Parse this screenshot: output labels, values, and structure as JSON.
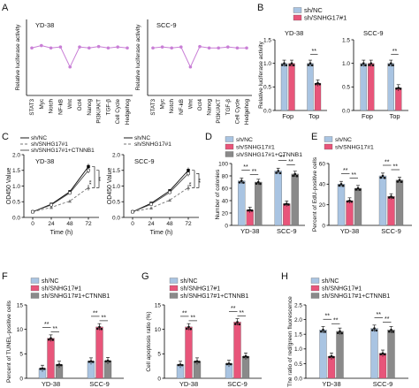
{
  "colors": {
    "nc": "#a9c4e2",
    "sh": "#e8557a",
    "rescue": "#8a8a8a",
    "line": "#c97fd6",
    "black": "#000000",
    "dashed": "#777777"
  },
  "chart_data": [
    {
      "id": "A1",
      "panel": "A",
      "type": "line",
      "title": "YD-38",
      "ylabel": "Relative luciferase activity",
      "categories": [
        "STAT3",
        "Myc",
        "Notch",
        "NF-kB",
        "Wnt",
        "Oct4",
        "Nanog",
        "PI3K/AKT",
        "TGF-β",
        "Cell Cycle",
        "Hedgehog"
      ],
      "values": [
        1.0,
        1.05,
        1.0,
        1.02,
        0.6,
        1.02,
        1.0,
        1.03,
        1.0,
        1.02,
        1.0
      ],
      "ylim": [
        0,
        1.6
      ]
    },
    {
      "id": "A2",
      "panel": "",
      "type": "line",
      "title": "SCC-9",
      "ylabel": "Relative luciferase activity",
      "categories": [
        "STAT3",
        "Myc",
        "Notch",
        "NF-kB",
        "Wnt",
        "Oct4",
        "Nanog",
        "PI3K/AKT",
        "TGF-β",
        "Cell Cycle",
        "Hedgehog"
      ],
      "values": [
        1.0,
        1.02,
        1.0,
        1.02,
        0.6,
        1.03,
        1.0,
        1.0,
        1.02,
        1.0,
        1.0
      ],
      "ylim": [
        0,
        1.6
      ]
    },
    {
      "id": "B1",
      "panel": "B",
      "type": "bar",
      "title": "YD-38",
      "ylabel": "Relative luciferase activity",
      "categories": [
        "Fop",
        "Top"
      ],
      "series": [
        {
          "name": "sh/NC",
          "values": [
            1.0,
            1.0
          ]
        },
        {
          "name": "sh/SNHG17#1",
          "values": [
            1.0,
            0.58
          ]
        }
      ],
      "ylim": [
        0,
        1.5
      ],
      "yticks": [
        "0.0",
        "0.5",
        "1.0",
        "1.5"
      ],
      "sig": [
        "**"
      ]
    },
    {
      "id": "B2",
      "panel": "",
      "type": "bar",
      "title": "SCC-9",
      "ylabel": "",
      "categories": [
        "Fop",
        "Top"
      ],
      "series": [
        {
          "name": "sh/NC",
          "values": [
            1.0,
            1.0
          ]
        },
        {
          "name": "sh/SNHG17#1",
          "values": [
            1.0,
            0.48
          ]
        }
      ],
      "ylim": [
        0,
        1.5
      ],
      "yticks": [
        "0.0",
        "0.5",
        "1.0",
        "1.5"
      ],
      "sig": [
        "**"
      ]
    },
    {
      "id": "C1",
      "panel": "C",
      "type": "line",
      "title": "YD-38",
      "ylabel": "OD450 Value",
      "xlabel": "Time (h)",
      "x": [
        "0",
        "24",
        "48",
        "72"
      ],
      "series": [
        {
          "name": "sh/NC",
          "values": [
            0.18,
            0.42,
            0.82,
            1.62
          ]
        },
        {
          "name": "sh/SNHG17#1",
          "values": [
            0.18,
            0.32,
            0.52,
            0.95
          ]
        },
        {
          "name": "sh/SNHG17#1+CTNNB1",
          "values": [
            0.18,
            0.4,
            0.78,
            1.5
          ]
        }
      ],
      "ylim": [
        0,
        2.0
      ],
      "yticks": [
        "0.0",
        "0.5",
        "1.0",
        "1.5",
        "2.0"
      ],
      "sig": [
        "**",
        "**"
      ]
    },
    {
      "id": "C2",
      "panel": "",
      "type": "line",
      "title": "SCC-9",
      "ylabel": "OD450 Value",
      "xlabel": "Time (h)",
      "x": [
        "0",
        "24",
        "48",
        "72"
      ],
      "series": [
        {
          "name": "sh/NC",
          "values": [
            0.18,
            0.45,
            0.85,
            1.5
          ]
        },
        {
          "name": "sh/SNHG17#1",
          "values": [
            0.18,
            0.3,
            0.55,
            0.95
          ]
        },
        {
          "name": "sh/SNHG17#1+CTNNB1",
          "values": [
            0.18,
            0.42,
            0.8,
            1.4
          ]
        }
      ],
      "ylim": [
        0,
        2.0
      ],
      "yticks": [
        "0.0",
        "0.5",
        "1.0",
        "1.5",
        "2.0"
      ],
      "sig": [
        "**",
        "**"
      ]
    },
    {
      "id": "D",
      "panel": "D",
      "type": "bar",
      "title": "",
      "ylabel": "Number of colonies",
      "categories": [
        "YD-38",
        "SCC-9"
      ],
      "series": [
        {
          "name": "sh/NC",
          "values": [
            72,
            88
          ]
        },
        {
          "name": "sh/SNHG17#1",
          "values": [
            25,
            35
          ]
        },
        {
          "name": "sh/SNHG17#1+CTNNB1",
          "values": [
            70,
            83
          ]
        }
      ],
      "ylim": [
        0,
        100
      ],
      "yticks": [
        "0",
        "20",
        "40",
        "60",
        "80",
        "100"
      ],
      "sig": [
        "**",
        "**",
        "**",
        "**"
      ]
    },
    {
      "id": "E",
      "panel": "E",
      "type": "bar",
      "title": "",
      "ylabel": "Percent of EdU-positive cells",
      "categories": [
        "YD-38",
        "SCC-9"
      ],
      "series": [
        {
          "name": "sh/NC",
          "values": [
            40,
            48
          ]
        },
        {
          "name": "sh/SNHG17#1",
          "values": [
            24,
            28
          ]
        },
        {
          "name": "sh/SNHG17#1+CTNNB1",
          "values": [
            36,
            44
          ]
        }
      ],
      "ylim": [
        0,
        60
      ],
      "yticks": [
        "0",
        "20",
        "40",
        "60"
      ],
      "sig": [
        "**",
        "**",
        "**",
        "**"
      ]
    },
    {
      "id": "F",
      "panel": "F",
      "type": "bar",
      "title": "",
      "ylabel": "Percent of TUNEL-positive cells",
      "categories": [
        "YD-38",
        "SCC-9"
      ],
      "series": [
        {
          "name": "sh/NC",
          "values": [
            2.0,
            3.5
          ]
        },
        {
          "name": "sh/SNHG17#1",
          "values": [
            8.2,
            10.5
          ]
        },
        {
          "name": "sh/SNHG17#1+CTNNB1",
          "values": [
            2.8,
            3.6
          ]
        }
      ],
      "ylim": [
        0,
        15
      ],
      "yticks": [
        "0",
        "5",
        "10",
        "15"
      ],
      "sig": [
        "**",
        "**",
        "**",
        "**"
      ]
    },
    {
      "id": "G",
      "panel": "G",
      "type": "bar",
      "title": "",
      "ylabel": "Cell apoptosis ratio (%)",
      "categories": [
        "YD-38",
        "SCC-9"
      ],
      "series": [
        {
          "name": "sh/NC",
          "values": [
            2.8,
            3.0
          ]
        },
        {
          "name": "sh/SNHG17#1",
          "values": [
            10.5,
            11.5
          ]
        },
        {
          "name": "sh/SNHG17#1+CTNNB1",
          "values": [
            3.5,
            4.5
          ]
        }
      ],
      "ylim": [
        0,
        15
      ],
      "yticks": [
        "0",
        "5",
        "10",
        "15"
      ],
      "sig": [
        "**",
        "**",
        "**",
        "**"
      ]
    },
    {
      "id": "H",
      "panel": "H",
      "type": "bar",
      "title": "",
      "ylabel": "The ratio of red/green fluorescence",
      "categories": [
        "YD-38",
        "SCC-9"
      ],
      "series": [
        {
          "name": "sh/NC",
          "values": [
            1.65,
            1.7
          ]
        },
        {
          "name": "sh/SNHG17#1",
          "values": [
            0.75,
            0.85
          ]
        },
        {
          "name": "sh/SNHG17#1+CTNNB1",
          "values": [
            1.6,
            1.65
          ]
        }
      ],
      "ylim": [
        0,
        2.5
      ],
      "yticks": [
        "0.0",
        "0.5",
        "1.0",
        "1.5",
        "2.0",
        "2.5"
      ],
      "sig": [
        "**",
        "**",
        "**",
        "**"
      ]
    }
  ],
  "ylabel_html": {
    "od": "OD",
    "sub": "450",
    "tail": " Value"
  }
}
